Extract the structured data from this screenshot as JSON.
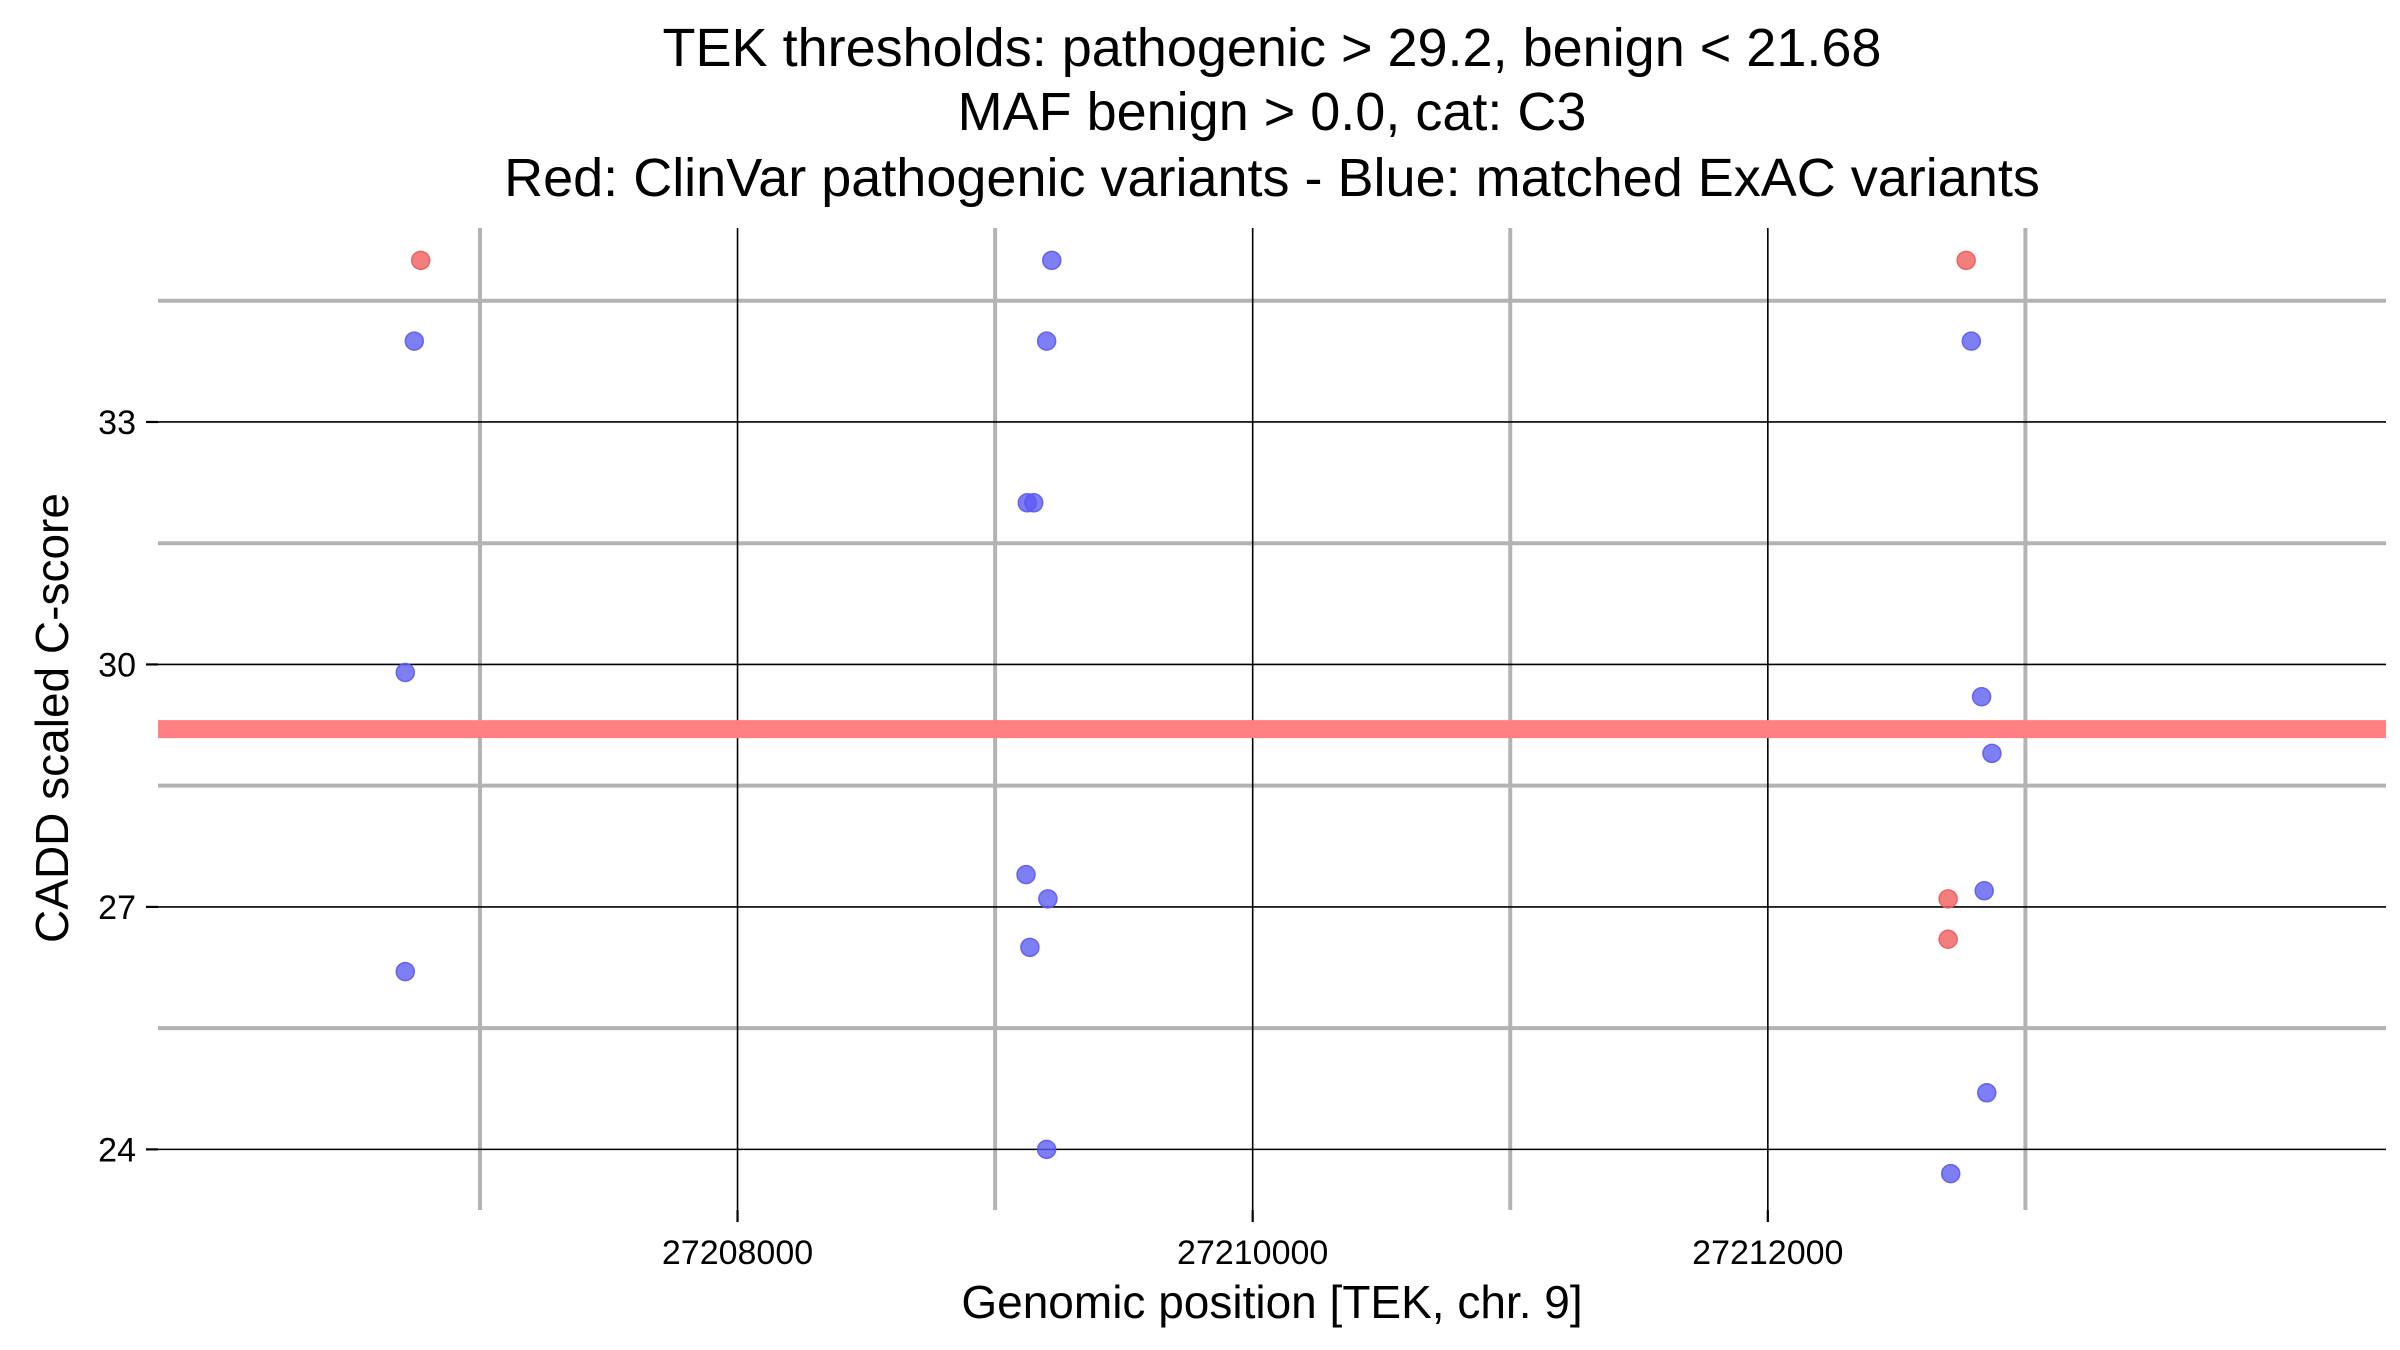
{
  "chart_data": {
    "type": "scatter",
    "title_lines": [
      "TEK thresholds: pathogenic > 29.2, benign < 21.68",
      "MAF benign > 0.0, cat: C3",
      "Red: ClinVar pathogenic variants - Blue: matched ExAC variants"
    ],
    "xlabel": "Genomic position [TEK, chr. 9]",
    "ylabel": "CADD scaled C-score",
    "xlim": [
      27205750,
      27214400
    ],
    "ylim": [
      23.25,
      35.4
    ],
    "x_ticks": [
      27208000,
      27210000,
      27212000
    ],
    "x_minor": [
      27207000,
      27209000,
      27211000,
      27213000
    ],
    "y_ticks": [
      24,
      27,
      30,
      33
    ],
    "y_minor": [
      25.5,
      28.5,
      31.5,
      34.5
    ],
    "grid": true,
    "threshold_line": {
      "y": 29.2,
      "color": "#ff7f82"
    },
    "colors": {
      "pathogenic": "#ee5a5a",
      "matched": "#5a5af2"
    },
    "series": [
      {
        "group": "pathogenic",
        "points": [
          [
            27206770,
            35.0
          ],
          [
            27212770,
            35.0
          ],
          [
            27212700,
            27.1
          ],
          [
            27212700,
            26.6
          ]
        ]
      },
      {
        "group": "matched",
        "points": [
          [
            27206745,
            34.0
          ],
          [
            27206710,
            29.9
          ],
          [
            27206710,
            26.2
          ],
          [
            27209220,
            35.0
          ],
          [
            27209200,
            34.0
          ],
          [
            27209125,
            32.0
          ],
          [
            27209150,
            32.0
          ],
          [
            27209120,
            27.4
          ],
          [
            27209205,
            27.1
          ],
          [
            27209135,
            26.5
          ],
          [
            27209200,
            24.0
          ],
          [
            27212790,
            34.0
          ],
          [
            27212830,
            29.6
          ],
          [
            27212870,
            28.9
          ],
          [
            27212840,
            27.2
          ],
          [
            27212850,
            24.7
          ],
          [
            27212710,
            23.7
          ]
        ]
      }
    ]
  }
}
